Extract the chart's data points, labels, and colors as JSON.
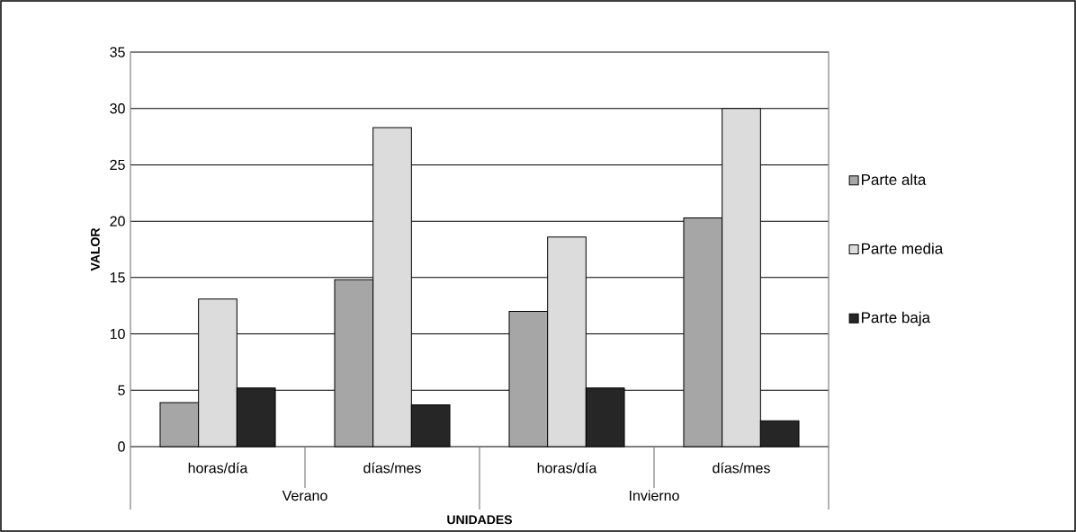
{
  "chart_data": {
    "type": "bar",
    "xlabel": "UNIDADES",
    "ylabel": "VALOR",
    "categories": [
      "horas/día",
      "días/mes",
      "horas/día",
      "días/mes"
    ],
    "annotations": [
      "Verano",
      "Invierno"
    ],
    "series": [
      {
        "name": "Parte alta",
        "color": "#a6a6a6",
        "values": [
          3.9,
          14.8,
          12.0,
          20.3
        ]
      },
      {
        "name": "Parte media",
        "color": "#dcdcdc",
        "values": [
          13.1,
          28.3,
          18.6,
          30.0
        ]
      },
      {
        "name": "Parte baja",
        "color": "#262626",
        "values": [
          5.2,
          3.7,
          5.2,
          2.3
        ]
      }
    ],
    "ylim": [
      0,
      35
    ],
    "yticks": [
      0,
      5,
      10,
      15,
      20,
      25,
      30,
      35
    ],
    "grid": "y",
    "legend": "right"
  }
}
